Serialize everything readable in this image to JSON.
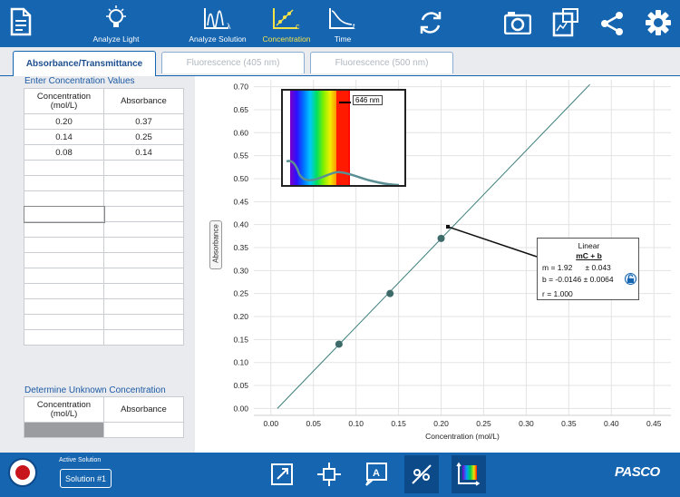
{
  "toolbar": {
    "items": [
      {
        "label": "Analyze Light",
        "icon": "lightbulb-icon"
      },
      {
        "label": "Analyze Solution",
        "icon": "spectrum-graph-icon"
      },
      {
        "label": "Concentration",
        "icon": "concentration-graph-icon"
      },
      {
        "label": "Time",
        "icon": "time-graph-icon"
      }
    ],
    "active_color": "#f5e34a",
    "bar_color": "#1565b0"
  },
  "tabs": [
    "Absorbance/Transmittance",
    "Fluorescence (405 nm)",
    "Fluorescence (500 nm)"
  ],
  "enter_section": {
    "title": "Enter Concentration Values",
    "col1": "Concentration (mol/L)",
    "col2": "Absorbance",
    "rows": [
      [
        "0.20",
        "0.37"
      ],
      [
        "0.14",
        "0.25"
      ],
      [
        "0.08",
        "0.14"
      ]
    ]
  },
  "unknown_section": {
    "title": "Determine Unknown Concentration",
    "col1": "Concentration (mol/L)",
    "col2": "Absorbance"
  },
  "graph": {
    "y_axis_button": "Absorbance",
    "inset_wavelength": "646 nm",
    "fit": {
      "title": "Linear",
      "equation": "mC + b",
      "m_line": "m = 1.92      ± 0.043",
      "b_line": "b = -0.0146 ± 0.0064",
      "r_line": "r = 1.000"
    }
  },
  "chart_data": {
    "type": "scatter",
    "xlabel": "Concentration (mol/L)",
    "ylabel": "Absorbance",
    "xlim": [
      -0.02,
      0.47
    ],
    "ylim": [
      -0.015,
      0.715
    ],
    "xticks": [
      "0.00",
      "0.05",
      "0.10",
      "0.15",
      "0.20",
      "0.25",
      "0.30",
      "0.35",
      "0.40",
      "0.45"
    ],
    "yticks": [
      "0.00",
      "0.05",
      "0.10",
      "0.15",
      "0.20",
      "0.25",
      "0.30",
      "0.35",
      "0.40",
      "0.45",
      "0.50",
      "0.55",
      "0.60",
      "0.65",
      "0.70"
    ],
    "grid": true,
    "points": [
      [
        0.08,
        0.14
      ],
      [
        0.14,
        0.25
      ],
      [
        0.2,
        0.37
      ]
    ],
    "fit_line": {
      "slope": 1.92,
      "intercept": -0.0146,
      "color": "#3a7d7a"
    },
    "point_color": "#3d6b6a"
  },
  "bottom": {
    "active_label": "Active Solution",
    "solution_button": "Solution #1",
    "brand": "PASCO"
  }
}
